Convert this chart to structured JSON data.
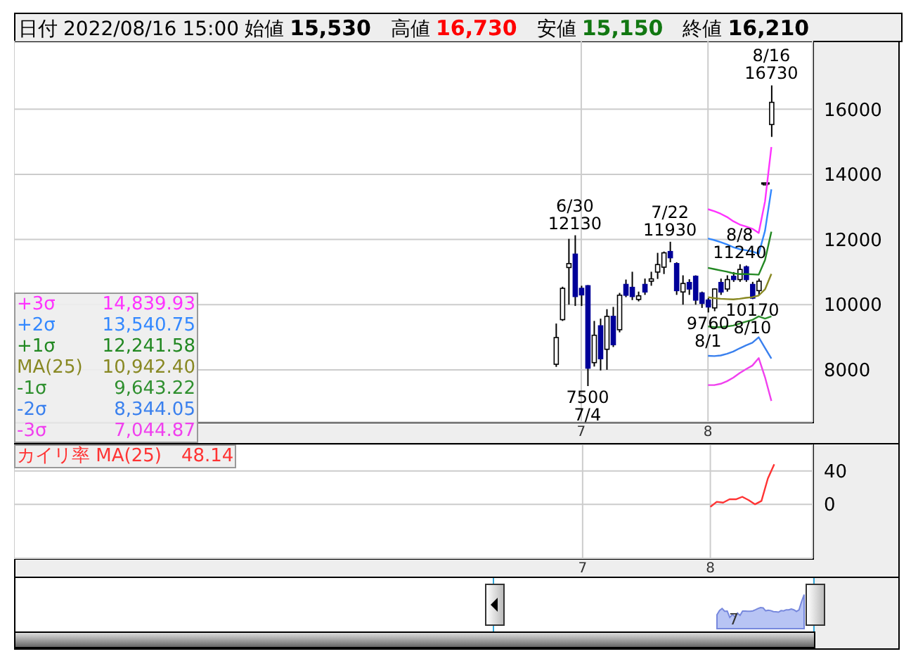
{
  "chart_data": [
    {
      "type": "candlestick",
      "title": "日付 2022/08/16 15:00 始値 15,530 高値 16,730 安値 15,150 終値 16,210",
      "categories": [
        null,
        null,
        null,
        null,
        null,
        null,
        null,
        null,
        null,
        null,
        null,
        null,
        null,
        null,
        null,
        null,
        null,
        null,
        null,
        null,
        null,
        null,
        null,
        null,
        null,
        null,
        null,
        null,
        null,
        null,
        null,
        null,
        null,
        null,
        null,
        null,
        null,
        null,
        null,
        null,
        null,
        null,
        null,
        null,
        null,
        null,
        null,
        null,
        null,
        null,
        null,
        null,
        null,
        null,
        null,
        null,
        null,
        null,
        null,
        null,
        null,
        null,
        null,
        null,
        null,
        null,
        null,
        null,
        null,
        null,
        null,
        null,
        null,
        null,
        null,
        null,
        null,
        null,
        null,
        null,
        null,
        null,
        null,
        null,
        null,
        null,
        null,
        null,
        null,
        "7",
        null,
        null,
        null,
        null,
        null,
        null,
        null,
        null,
        null,
        null,
        null,
        null,
        null,
        null,
        null,
        null,
        null,
        null,
        null,
        "8",
        null,
        null,
        null,
        null,
        null,
        null,
        null,
        null,
        null,
        null,
        null,
        null,
        null,
        null,
        null,
        null
      ],
      "ohlc": [
        null,
        null,
        null,
        null,
        null,
        null,
        null,
        null,
        null,
        null,
        null,
        null,
        null,
        null,
        null,
        null,
        null,
        null,
        null,
        null,
        null,
        null,
        null,
        null,
        null,
        null,
        null,
        null,
        null,
        null,
        null,
        null,
        null,
        null,
        null,
        null,
        null,
        null,
        null,
        null,
        null,
        null,
        null,
        null,
        null,
        null,
        null,
        null,
        null,
        null,
        null,
        null,
        null,
        null,
        null,
        null,
        null,
        null,
        null,
        null,
        null,
        null,
        null,
        null,
        null,
        null,
        null,
        null,
        null,
        null,
        null,
        null,
        null,
        null,
        null,
        null,
        null,
        null,
        null,
        null,
        null,
        null,
        null,
        null,
        null,
        [
          8170,
          9420,
          8090,
          8990
        ],
        [
          9540,
          10550,
          9500,
          10500
        ],
        [
          11140,
          12020,
          10000,
          11260
        ],
        [
          11550,
          12130,
          9960,
          10250
        ],
        [
          10500,
          10580,
          9960,
          10300
        ],
        [
          10580,
          10600,
          7500,
          8050
        ],
        [
          8220,
          9500,
          8100,
          9060
        ],
        [
          9350,
          9570,
          7980,
          8340
        ],
        [
          8630,
          9860,
          8000,
          9640
        ],
        [
          9640,
          9930,
          8700,
          8770
        ],
        [
          9230,
          10360,
          9150,
          10290
        ],
        [
          10620,
          10770,
          10230,
          10290
        ],
        [
          10530,
          11010,
          10140,
          10250
        ],
        [
          10160,
          10400,
          10100,
          10270
        ],
        [
          10620,
          10800,
          10300,
          10390
        ],
        [
          10720,
          11010,
          10580,
          10790
        ],
        [
          11000,
          11590,
          10790,
          11230
        ],
        [
          11150,
          11630,
          10940,
          11590
        ],
        [
          11630,
          11930,
          11300,
          11440
        ],
        [
          11260,
          11300,
          10300,
          10430
        ],
        [
          10390,
          10900,
          10000,
          10650
        ],
        [
          10680,
          10780,
          10300,
          10480
        ],
        [
          10870,
          10900,
          10000,
          10140
        ],
        [
          10360,
          10400,
          9900,
          10040
        ],
        [
          10140,
          10200,
          9760,
          9930
        ],
        [
          9900,
          10500,
          9800,
          10480
        ],
        [
          10680,
          10800,
          10300,
          10390
        ],
        [
          10480,
          10900,
          10400,
          10770
        ],
        [
          10870,
          11000,
          10700,
          10770
        ],
        [
          10770,
          11240,
          10700,
          11080
        ],
        [
          11160,
          11200,
          10700,
          10770
        ],
        [
          10620,
          10700,
          10170,
          10200
        ],
        [
          10430,
          10800,
          10300,
          10720
        ],
        [
          13720,
          13720,
          13720,
          13720
        ],
        [
          15530,
          16730,
          15150,
          16210
        ],
        null,
        null,
        null,
        null,
        null,
        null
      ],
      "series": [
        {
          "type": "line",
          "name": "+3σ",
          "color": "#ff33ff",
          "values": [
            null,
            null,
            null,
            null,
            null,
            null,
            null,
            null,
            null,
            null,
            null,
            null,
            null,
            null,
            null,
            null,
            null,
            null,
            null,
            null,
            null,
            null,
            null,
            null,
            null,
            null,
            null,
            null,
            null,
            null,
            null,
            null,
            null,
            null,
            null,
            null,
            null,
            null,
            null,
            null,
            null,
            null,
            null,
            null,
            null,
            null,
            null,
            null,
            null,
            null,
            null,
            null,
            null,
            null,
            null,
            null,
            null,
            null,
            null,
            null,
            null,
            null,
            null,
            null,
            null,
            null,
            null,
            null,
            null,
            null,
            null,
            null,
            null,
            null,
            null,
            null,
            null,
            null,
            null,
            null,
            null,
            null,
            null,
            null,
            null,
            null,
            null,
            null,
            null,
            null,
            null,
            null,
            null,
            null,
            null,
            null,
            null,
            null,
            null,
            null,
            null,
            null,
            null,
            null,
            null,
            null,
            null,
            null,
            null,
            12930,
            12870,
            12790,
            12690,
            12560,
            12460,
            12400,
            12330,
            12200,
            13170,
            14839.93,
            null,
            null,
            null,
            null,
            null,
            null
          ]
        },
        {
          "type": "line",
          "name": "+2σ",
          "color": "#3388ff",
          "values": [
            null,
            null,
            null,
            null,
            null,
            null,
            null,
            null,
            null,
            null,
            null,
            null,
            null,
            null,
            null,
            null,
            null,
            null,
            null,
            null,
            null,
            null,
            null,
            null,
            null,
            null,
            null,
            null,
            null,
            null,
            null,
            null,
            null,
            null,
            null,
            null,
            null,
            null,
            null,
            null,
            null,
            null,
            null,
            null,
            null,
            null,
            null,
            null,
            null,
            null,
            null,
            null,
            null,
            null,
            null,
            null,
            null,
            null,
            null,
            null,
            null,
            null,
            null,
            null,
            null,
            null,
            null,
            null,
            null,
            null,
            null,
            null,
            null,
            null,
            null,
            null,
            null,
            null,
            null,
            null,
            null,
            null,
            null,
            null,
            null,
            null,
            null,
            null,
            null,
            null,
            null,
            null,
            null,
            null,
            null,
            null,
            null,
            null,
            null,
            null,
            null,
            null,
            null,
            null,
            null,
            null,
            null,
            null,
            null,
            12030,
            11980,
            11920,
            11850,
            11760,
            11700,
            11670,
            11630,
            11560,
            12270,
            13540.75,
            null,
            null,
            null,
            null,
            null,
            null
          ]
        },
        {
          "type": "line",
          "name": "+1σ",
          "color": "#228822",
          "values": [
            null,
            null,
            null,
            null,
            null,
            null,
            null,
            null,
            null,
            null,
            null,
            null,
            null,
            null,
            null,
            null,
            null,
            null,
            null,
            null,
            null,
            null,
            null,
            null,
            null,
            null,
            null,
            null,
            null,
            null,
            null,
            null,
            null,
            null,
            null,
            null,
            null,
            null,
            null,
            null,
            null,
            null,
            null,
            null,
            null,
            null,
            null,
            null,
            null,
            null,
            null,
            null,
            null,
            null,
            null,
            null,
            null,
            null,
            null,
            null,
            null,
            null,
            null,
            null,
            null,
            null,
            null,
            null,
            null,
            null,
            null,
            null,
            null,
            null,
            null,
            null,
            null,
            null,
            null,
            null,
            null,
            null,
            null,
            null,
            null,
            null,
            null,
            null,
            null,
            null,
            null,
            null,
            null,
            null,
            null,
            null,
            null,
            null,
            null,
            null,
            null,
            null,
            null,
            null,
            null,
            null,
            null,
            null,
            null,
            11130,
            11090,
            11050,
            11010,
            10960,
            10940,
            10940,
            10930,
            10920,
            11370,
            12241.58,
            null,
            null,
            null,
            null,
            null,
            null
          ]
        },
        {
          "type": "line",
          "name": "MA(25)",
          "color": "#888822",
          "values": [
            null,
            null,
            null,
            null,
            null,
            null,
            null,
            null,
            null,
            null,
            null,
            null,
            null,
            null,
            null,
            null,
            null,
            null,
            null,
            null,
            null,
            null,
            null,
            null,
            null,
            null,
            null,
            null,
            null,
            null,
            null,
            null,
            null,
            null,
            null,
            null,
            null,
            null,
            null,
            null,
            null,
            null,
            null,
            null,
            null,
            null,
            null,
            null,
            null,
            null,
            null,
            null,
            null,
            null,
            null,
            null,
            null,
            null,
            null,
            null,
            null,
            null,
            null,
            null,
            null,
            null,
            null,
            null,
            null,
            null,
            null,
            null,
            null,
            null,
            null,
            null,
            null,
            null,
            null,
            null,
            null,
            null,
            null,
            null,
            null,
            null,
            null,
            null,
            null,
            null,
            null,
            null,
            null,
            null,
            null,
            null,
            null,
            null,
            null,
            null,
            null,
            null,
            null,
            null,
            null,
            null,
            null,
            null,
            null,
            10230,
            10200,
            10180,
            10170,
            10160,
            10180,
            10210,
            10230,
            10280,
            10470,
            10942.4,
            null,
            null,
            null,
            null,
            null,
            null
          ]
        },
        {
          "type": "line",
          "name": "-1σ",
          "color": "#2e8f2e",
          "values": [
            null,
            null,
            null,
            null,
            null,
            null,
            null,
            null,
            null,
            null,
            null,
            null,
            null,
            null,
            null,
            null,
            null,
            null,
            null,
            null,
            null,
            null,
            null,
            null,
            null,
            null,
            null,
            null,
            null,
            null,
            null,
            null,
            null,
            null,
            null,
            null,
            null,
            null,
            null,
            null,
            null,
            null,
            null,
            null,
            null,
            null,
            null,
            null,
            null,
            null,
            null,
            null,
            null,
            null,
            null,
            null,
            null,
            null,
            null,
            null,
            null,
            null,
            null,
            null,
            null,
            null,
            null,
            null,
            null,
            null,
            null,
            null,
            null,
            null,
            null,
            null,
            null,
            null,
            null,
            null,
            null,
            null,
            null,
            null,
            null,
            null,
            null,
            null,
            null,
            null,
            null,
            null,
            null,
            null,
            null,
            null,
            null,
            null,
            null,
            null,
            null,
            null,
            null,
            null,
            null,
            null,
            null,
            null,
            null,
            9330,
            9310,
            9310,
            9330,
            9360,
            9420,
            9480,
            9530,
            9640,
            9570,
            9643.22,
            null,
            null,
            null,
            null,
            null,
            null
          ]
        },
        {
          "type": "line",
          "name": "-2σ",
          "color": "#3a80ee",
          "values": [
            null,
            null,
            null,
            null,
            null,
            null,
            null,
            null,
            null,
            null,
            null,
            null,
            null,
            null,
            null,
            null,
            null,
            null,
            null,
            null,
            null,
            null,
            null,
            null,
            null,
            null,
            null,
            null,
            null,
            null,
            null,
            null,
            null,
            null,
            null,
            null,
            null,
            null,
            null,
            null,
            null,
            null,
            null,
            null,
            null,
            null,
            null,
            null,
            null,
            null,
            null,
            null,
            null,
            null,
            null,
            null,
            null,
            null,
            null,
            null,
            null,
            null,
            null,
            null,
            null,
            null,
            null,
            null,
            null,
            null,
            null,
            null,
            null,
            null,
            null,
            null,
            null,
            null,
            null,
            null,
            null,
            null,
            null,
            null,
            null,
            null,
            null,
            null,
            null,
            null,
            null,
            null,
            null,
            null,
            null,
            null,
            null,
            null,
            null,
            null,
            null,
            null,
            null,
            null,
            null,
            null,
            null,
            null,
            null,
            8430,
            8420,
            8440,
            8490,
            8560,
            8660,
            8750,
            8830,
            9000,
            8670,
            8344.05,
            null,
            null,
            null,
            null,
            null,
            null
          ]
        },
        {
          "type": "line",
          "name": "-3σ",
          "color": "#f040ee",
          "values": [
            null,
            null,
            null,
            null,
            null,
            null,
            null,
            null,
            null,
            null,
            null,
            null,
            null,
            null,
            null,
            null,
            null,
            null,
            null,
            null,
            null,
            null,
            null,
            null,
            null,
            null,
            null,
            null,
            null,
            null,
            null,
            null,
            null,
            null,
            null,
            null,
            null,
            null,
            null,
            null,
            null,
            null,
            null,
            null,
            null,
            null,
            null,
            null,
            null,
            null,
            null,
            null,
            null,
            null,
            null,
            null,
            null,
            null,
            null,
            null,
            null,
            null,
            null,
            null,
            null,
            null,
            null,
            null,
            null,
            null,
            null,
            null,
            null,
            null,
            null,
            null,
            null,
            null,
            null,
            null,
            null,
            null,
            null,
            null,
            null,
            null,
            null,
            null,
            null,
            null,
            null,
            null,
            null,
            null,
            null,
            null,
            null,
            null,
            null,
            null,
            null,
            null,
            null,
            null,
            null,
            null,
            null,
            null,
            null,
            7530,
            7530,
            7570,
            7650,
            7760,
            7900,
            8020,
            8130,
            8360,
            7770,
            7044.87,
            null,
            null,
            null,
            null,
            null,
            null
          ]
        }
      ],
      "ylim": [
        6400,
        18100
      ],
      "yticks": [
        8000,
        10000,
        12000,
        14000,
        16000
      ],
      "grid": true,
      "legend": "bottom left",
      "annotations": [
        {
          "text": "6/30\n12130",
          "y": 12130
        },
        {
          "text": "7/22\n11930",
          "y": 11930
        },
        {
          "text": "8/8\n11240",
          "y": 11240
        },
        {
          "text": "8/16\n16730",
          "y": 16730
        },
        {
          "text": "7500\n7/4",
          "y": 7500
        },
        {
          "text": "9760\n8/1",
          "y": 9760
        },
        {
          "text": "10170\n8/10",
          "y": 10170
        },
        "14,839.93",
        "13,540.75",
        "12,241.58",
        "10,942.40",
        "9,643.22",
        "8,344.05",
        "7,044.87"
      ]
    },
    {
      "type": "line",
      "categories": [
        null,
        null,
        null,
        null,
        null,
        null,
        null,
        null,
        null,
        null,
        null,
        null,
        null,
        null,
        null,
        null,
        null,
        null,
        null,
        null,
        null,
        null,
        null,
        null,
        null,
        null,
        null,
        null,
        null,
        null,
        null,
        null,
        null,
        null,
        null,
        null,
        null,
        null,
        null,
        null,
        null,
        null,
        null,
        null,
        null,
        null,
        null,
        null,
        null,
        null,
        null,
        null,
        null,
        null,
        null,
        null,
        null,
        null,
        null,
        null,
        null,
        null,
        null,
        null,
        null,
        null,
        null,
        null,
        null,
        null,
        null,
        null,
        null,
        null,
        null,
        null,
        null,
        null,
        null,
        null,
        null,
        null,
        null,
        null,
        null,
        null,
        null,
        null,
        null,
        "7",
        null,
        null,
        null,
        null,
        null,
        null,
        null,
        null,
        null,
        null,
        null,
        null,
        null,
        null,
        null,
        null,
        null,
        null,
        null,
        "8",
        null,
        null,
        null,
        null,
        null,
        null,
        null,
        null,
        null,
        null,
        null,
        null,
        null,
        null,
        null,
        null
      ],
      "series": [
        {
          "name": "カイリ率 MA(25)",
          "color": "#ff3333",
          "values": [
            null,
            null,
            null,
            null,
            null,
            null,
            null,
            null,
            null,
            null,
            null,
            null,
            null,
            null,
            null,
            null,
            null,
            null,
            null,
            null,
            null,
            null,
            null,
            null,
            null,
            null,
            null,
            null,
            null,
            null,
            null,
            null,
            null,
            null,
            null,
            null,
            null,
            null,
            null,
            null,
            null,
            null,
            null,
            null,
            null,
            null,
            null,
            null,
            null,
            null,
            null,
            null,
            null,
            null,
            null,
            null,
            null,
            null,
            null,
            null,
            null,
            null,
            null,
            null,
            null,
            null,
            null,
            null,
            null,
            null,
            null,
            null,
            null,
            null,
            null,
            null,
            null,
            null,
            null,
            null,
            null,
            null,
            null,
            null,
            null,
            null,
            null,
            null,
            null,
            null,
            null,
            null,
            null,
            null,
            null,
            null,
            null,
            null,
            null,
            null,
            null,
            null,
            null,
            null,
            null,
            null,
            null,
            null,
            null,
            -3,
            3,
            2,
            6,
            6,
            9,
            5,
            0,
            4,
            31,
            48.14,
            null,
            null,
            null,
            null,
            null,
            null
          ]
        }
      ],
      "ylim": [
        -65,
        72
      ],
      "yticks": [
        0,
        40
      ],
      "grid": true,
      "legend": "top left",
      "annotations": [
        "48.14"
      ]
    }
  ]
}
